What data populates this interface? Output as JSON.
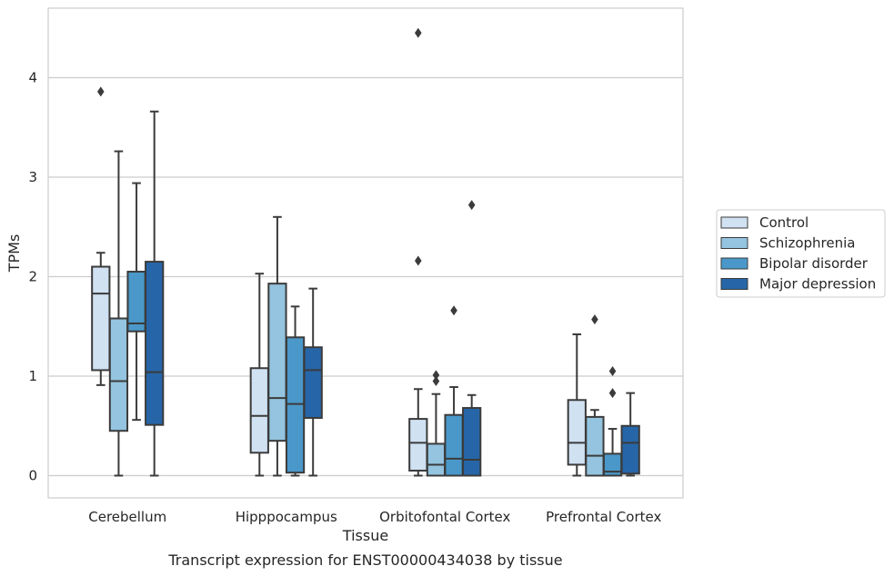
{
  "chart_data": {
    "type": "box",
    "xlabel": "Tissue",
    "ylabel": "TPMs",
    "caption": "Transcript expression for ENST00000434038 by tissue",
    "ylim": [
      -0.22,
      4.7
    ],
    "yticks": [
      0,
      1,
      2,
      3,
      4
    ],
    "grid": "horizontal",
    "legend_position": "right",
    "categories": [
      "Cerebellum",
      "Hipppocampus",
      "Orbitofontal Cortex",
      "Prefrontal Cortex"
    ],
    "series": [
      {
        "name": "Control",
        "color": "#d0e1f2",
        "boxes": [
          {
            "whisker_low": 0.91,
            "q1": 1.06,
            "median": 1.83,
            "q3": 2.1,
            "whisker_high": 2.24,
            "outliers": [
              3.86
            ]
          },
          {
            "whisker_low": 0.0,
            "q1": 0.23,
            "median": 0.6,
            "q3": 1.08,
            "whisker_high": 2.03,
            "outliers": []
          },
          {
            "whisker_low": 0.0,
            "q1": 0.05,
            "median": 0.33,
            "q3": 0.57,
            "whisker_high": 0.87,
            "outliers": [
              2.16,
              4.45
            ]
          },
          {
            "whisker_low": 0.0,
            "q1": 0.11,
            "median": 0.33,
            "q3": 0.76,
            "whisker_high": 1.42,
            "outliers": []
          }
        ]
      },
      {
        "name": "Schizophrenia",
        "color": "#94c4df",
        "boxes": [
          {
            "whisker_low": 0.0,
            "q1": 0.45,
            "median": 0.95,
            "q3": 1.58,
            "whisker_high": 3.26,
            "outliers": []
          },
          {
            "whisker_low": 0.0,
            "q1": 0.35,
            "median": 0.78,
            "q3": 1.93,
            "whisker_high": 2.6,
            "outliers": []
          },
          {
            "whisker_low": 0.0,
            "q1": 0.0,
            "median": 0.11,
            "q3": 0.32,
            "whisker_high": 0.82,
            "outliers": [
              0.95,
              1.01
            ]
          },
          {
            "whisker_low": 0.0,
            "q1": 0.0,
            "median": 0.2,
            "q3": 0.59,
            "whisker_high": 0.66,
            "outliers": [
              1.57
            ]
          }
        ]
      },
      {
        "name": "Bipolar disorder",
        "color": "#4a98c9",
        "boxes": [
          {
            "whisker_low": 0.56,
            "q1": 1.45,
            "median": 1.53,
            "q3": 2.05,
            "whisker_high": 2.94,
            "outliers": []
          },
          {
            "whisker_low": 0.0,
            "q1": 0.03,
            "median": 0.72,
            "q3": 1.39,
            "whisker_high": 1.7,
            "outliers": []
          },
          {
            "whisker_low": 0.0,
            "q1": 0.0,
            "median": 0.17,
            "q3": 0.61,
            "whisker_high": 0.89,
            "outliers": [
              1.66
            ]
          },
          {
            "whisker_low": 0.0,
            "q1": 0.0,
            "median": 0.04,
            "q3": 0.22,
            "whisker_high": 0.47,
            "outliers": [
              0.83,
              1.05
            ]
          }
        ]
      },
      {
        "name": "Major depression",
        "color": "#2666a8",
        "boxes": [
          {
            "whisker_low": 0.0,
            "q1": 0.51,
            "median": 1.04,
            "q3": 2.15,
            "whisker_high": 3.66,
            "outliers": []
          },
          {
            "whisker_low": 0.0,
            "q1": 0.58,
            "median": 1.06,
            "q3": 1.29,
            "whisker_high": 1.88,
            "outliers": []
          },
          {
            "whisker_low": 0.0,
            "q1": 0.0,
            "median": 0.16,
            "q3": 0.68,
            "whisker_high": 0.81,
            "outliers": [
              2.72
            ]
          },
          {
            "whisker_low": 0.0,
            "q1": 0.02,
            "median": 0.33,
            "q3": 0.5,
            "whisker_high": 0.83,
            "outliers": []
          }
        ]
      }
    ]
  }
}
